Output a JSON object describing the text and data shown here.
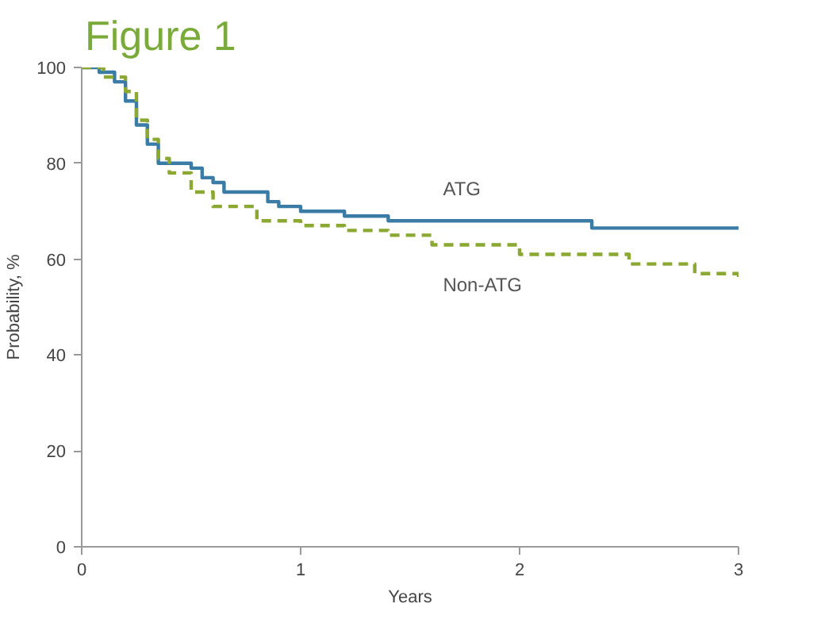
{
  "chart_data": {
    "type": "step",
    "title": "Figure 1",
    "xlabel": "Years",
    "ylabel": "Probability, %",
    "xlim": [
      0,
      3
    ],
    "ylim": [
      0,
      100
    ],
    "xticks": [
      0,
      1,
      2,
      3
    ],
    "yticks": [
      0,
      20,
      40,
      60,
      80,
      100
    ],
    "grid": false,
    "marker": "none",
    "series": [
      {
        "name": "ATG",
        "color": "#3a7ca5",
        "line_style": "solid",
        "x": [
          0,
          0.08,
          0.15,
          0.2,
          0.25,
          0.3,
          0.35,
          0.5,
          0.55,
          0.6,
          0.65,
          0.85,
          0.9,
          1.0,
          1.2,
          1.4,
          2.33,
          3.0
        ],
        "values": [
          100,
          99,
          97,
          93,
          88,
          84,
          80,
          79,
          77,
          76,
          74,
          72,
          71,
          70,
          69,
          68,
          66.5,
          66.5
        ]
      },
      {
        "name": "Non-ATG",
        "color": "#8aa832",
        "line_style": "dashed",
        "x": [
          0,
          0.1,
          0.2,
          0.25,
          0.3,
          0.35,
          0.4,
          0.5,
          0.6,
          0.8,
          1.0,
          1.2,
          1.4,
          1.6,
          2.0,
          2.5,
          2.8,
          3.0
        ],
        "values": [
          100,
          98,
          95,
          89,
          85,
          81,
          78,
          74,
          71,
          68,
          67,
          66,
          65,
          63,
          61,
          59,
          57,
          55
        ]
      }
    ]
  }
}
